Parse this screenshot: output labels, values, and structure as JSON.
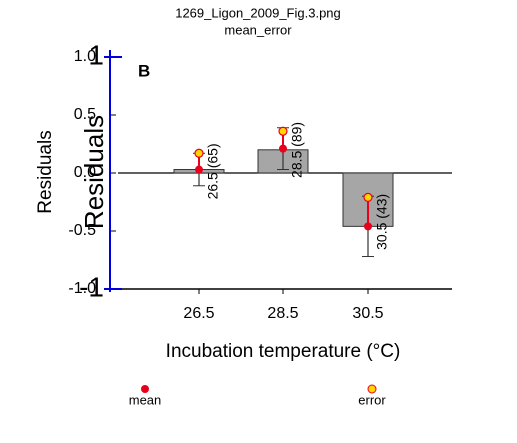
{
  "chart_data": {
    "type": "bar",
    "title": "1269_Ligon_2009_Fig.3.png",
    "subtitle": "mean_error",
    "panel_label": "B",
    "ylabel": "Residuals",
    "xlabel": "Incubation temperature (°C)",
    "categories": [
      "26.5",
      "28.5",
      "30.5"
    ],
    "bars": {
      "color": "#a6a6a6",
      "values": [
        0.03,
        0.2,
        -0.46
      ],
      "error_low": [
        -0.11,
        0.03,
        -0.72
      ],
      "error_high": [
        0.17,
        0.39,
        -0.2
      ]
    },
    "series": [
      {
        "name": "mean",
        "color": "#e8001c",
        "values": [
          0.03,
          0.21,
          -0.46
        ]
      },
      {
        "name": "error",
        "color": "#ffd700",
        "values": [
          0.17,
          0.36,
          -0.21
        ]
      }
    ],
    "point_labels": [
      "26.5 (65)",
      "28.5 (89)",
      "30.5 (43)"
    ],
    "ylim": [
      -1,
      1
    ],
    "yticks": [
      {
        "value": 1,
        "label": "1.0"
      },
      {
        "value": 0.5,
        "label": "0.5"
      },
      {
        "value": 0,
        "label": "0.0"
      },
      {
        "value": -0.5,
        "label": "-0.5"
      },
      {
        "value": -1,
        "label": "-1.0"
      }
    ],
    "y2label": "Residuals",
    "y2lim": [
      -1,
      1
    ],
    "y2ticks": [
      1,
      -1
    ],
    "y2color": "#0000dd"
  }
}
